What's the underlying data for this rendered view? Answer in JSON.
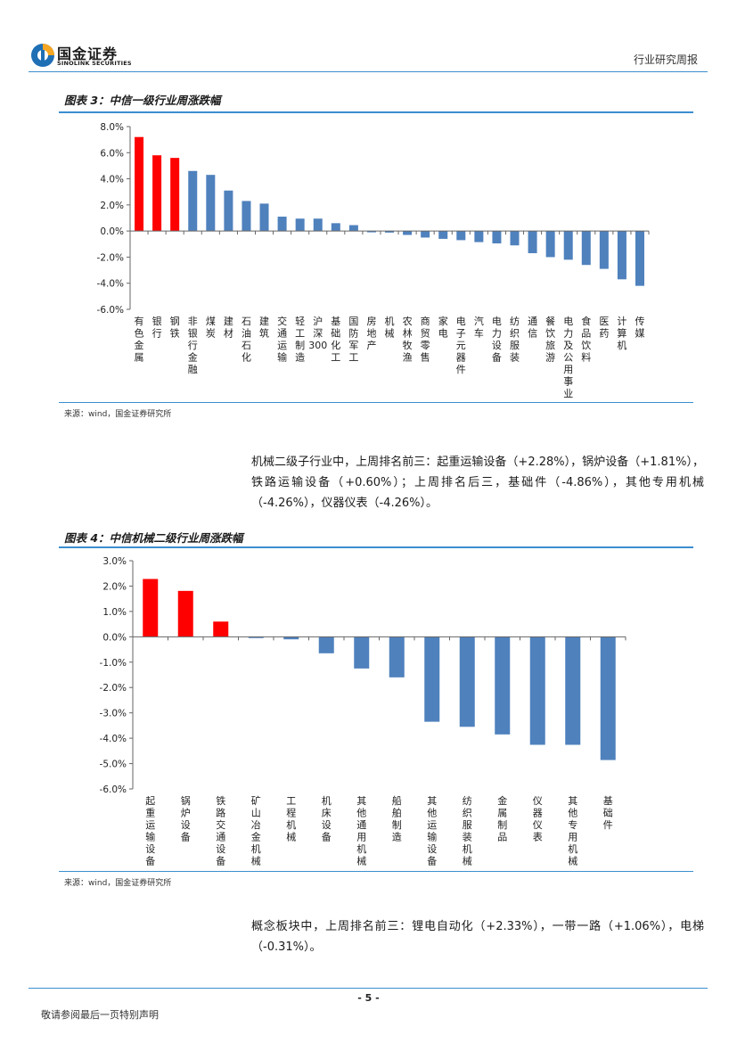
{
  "header": {
    "logo_cn": "国金证券",
    "logo_en": "SINOLINK SECURITIES",
    "report_type": "行业研究周报"
  },
  "figure3": {
    "title": "图表 3：中信一级行业周涨跌幅",
    "source": "来源：wind，国金证券研究所"
  },
  "figure4": {
    "title": "图表 4：中信机械二级行业周涨跌幅",
    "source": "来源：wind，国金证券研究所"
  },
  "paragraph1": "机械二级子行业中，上周排名前三：起重运输设备（+2.28%），锅炉设备（+1.81%），铁路运输设备（+0.60%）；上周排名后三，基础件（-4.86%），其他专用机械（-4.26%），仪器仪表（-4.26%）。",
  "paragraph2": "概念板块中，上周排名前三：锂电自动化（+2.33%），一带一路（+1.06%），电梯（-0.31%）。",
  "footer": {
    "page_number": "- 5 -",
    "disclaimer": "敬请参阅最后一页特别声明"
  },
  "colors": {
    "positive_top": "#ff0000",
    "bar": "#4f81bd",
    "rule": "#3b8ecf"
  },
  "chart_data": [
    {
      "type": "bar",
      "title": "图表 3：中信一级行业周涨跌幅",
      "categories": [
        "有色金属",
        "银行",
        "钢铁",
        "非银行金融",
        "煤炭",
        "建材",
        "石油石化",
        "建筑",
        "交通运输",
        "轻工制造",
        "沪深300",
        "基础化工",
        "国防军工",
        "房地产",
        "机械",
        "农林牧渔",
        "商贸零售",
        "家电",
        "电子元器件",
        "汽车",
        "电力设备",
        "纺织服装",
        "通信",
        "餐饮旅游",
        "电力及公用事业",
        "食品饮料",
        "医药",
        "计算机",
        "传媒"
      ],
      "values": [
        7.2,
        5.8,
        5.6,
        4.6,
        4.3,
        3.1,
        2.3,
        2.1,
        1.1,
        0.95,
        0.95,
        0.6,
        0.45,
        -0.1,
        -0.12,
        -0.3,
        -0.5,
        -0.6,
        -0.7,
        -0.85,
        -0.95,
        -1.1,
        -1.7,
        -2.0,
        -2.2,
        -2.6,
        -2.9,
        -3.7,
        -4.2
      ],
      "highlight": [
        0,
        1,
        2
      ],
      "ylim": [
        -6,
        8
      ],
      "yticks": [
        "8.0%",
        "6.0%",
        "4.0%",
        "2.0%",
        "0.0%",
        "-2.0%",
        "-4.0%",
        "-6.0%"
      ],
      "ytick_values": [
        8,
        6,
        4,
        2,
        0,
        -2,
        -4,
        -6
      ]
    },
    {
      "type": "bar",
      "title": "图表 4：中信机械二级行业周涨跌幅",
      "categories": [
        "起重运输设备",
        "锅炉设备",
        "铁路交通设备",
        "矿山冶金机械",
        "工程机械",
        "机床设备",
        "其他通用机械",
        "船舶制造",
        "其他运输设备",
        "纺织服装机械",
        "金属制品",
        "仪器仪表",
        "其他专用机械",
        "基础件"
      ],
      "values": [
        2.28,
        1.81,
        0.6,
        -0.05,
        -0.1,
        -0.65,
        -1.25,
        -1.6,
        -3.35,
        -3.55,
        -3.85,
        -4.26,
        -4.26,
        -4.86
      ],
      "highlight": [
        0,
        1,
        2
      ],
      "ylim": [
        -6,
        3
      ],
      "yticks": [
        "3.0%",
        "2.0%",
        "1.0%",
        "0.0%",
        "-1.0%",
        "-2.0%",
        "-3.0%",
        "-4.0%",
        "-5.0%",
        "-6.0%"
      ],
      "ytick_values": [
        3,
        2,
        1,
        0,
        -1,
        -2,
        -3,
        -4,
        -5,
        -6
      ]
    }
  ]
}
